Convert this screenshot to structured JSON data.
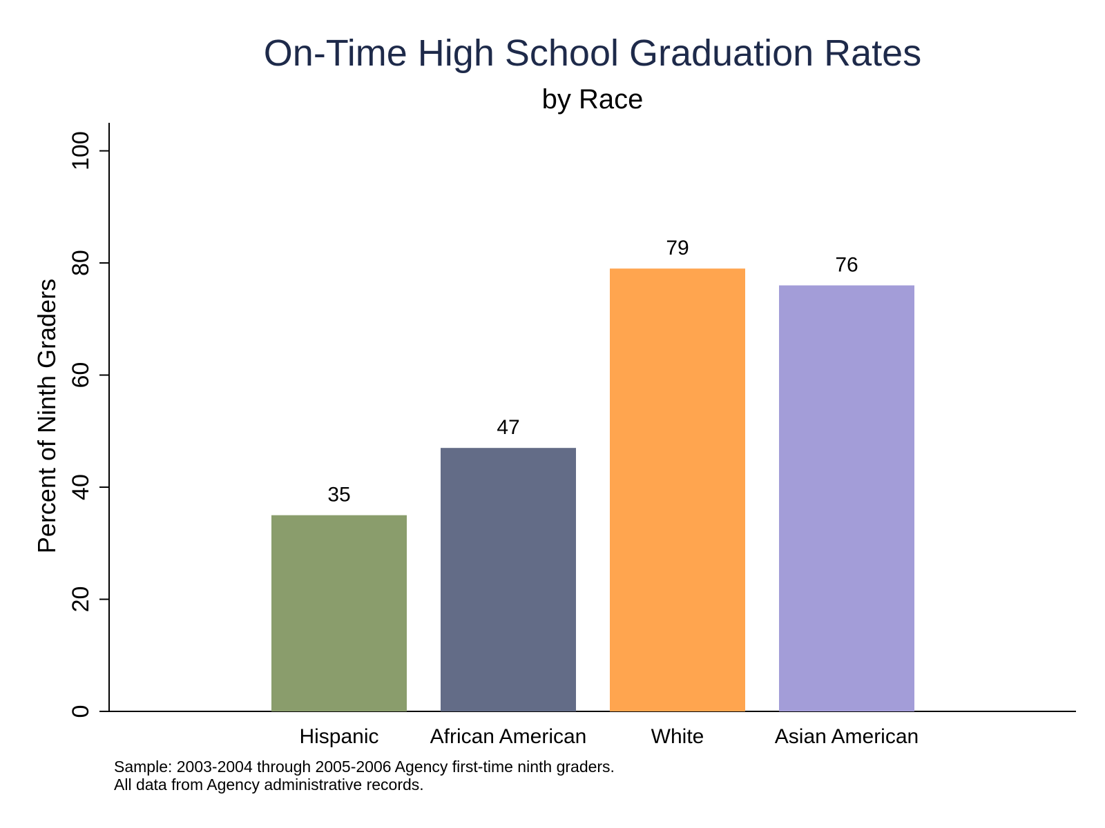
{
  "chart_data": {
    "type": "bar",
    "title": "On-Time High School Graduation Rates",
    "subtitle": "by Race",
    "ylabel": "Percent of Ninth Graders",
    "xlabel": "",
    "ylim": [
      0,
      105
    ],
    "yticks": [
      0,
      20,
      40,
      60,
      80,
      100
    ],
    "grid": false,
    "categories": [
      "Hispanic",
      "African American",
      "White",
      "Asian American"
    ],
    "values": [
      35,
      47,
      79,
      76
    ],
    "value_labels": [
      "35",
      "47",
      "79",
      "76"
    ],
    "colors": [
      "#8a9d6c",
      "#636c87",
      "#ffa54f",
      "#a39dd8"
    ],
    "notes": [
      "Sample: 2003-2004 through 2005-2006 Agency first-time ninth graders.",
      "All data from Agency administrative records."
    ]
  }
}
